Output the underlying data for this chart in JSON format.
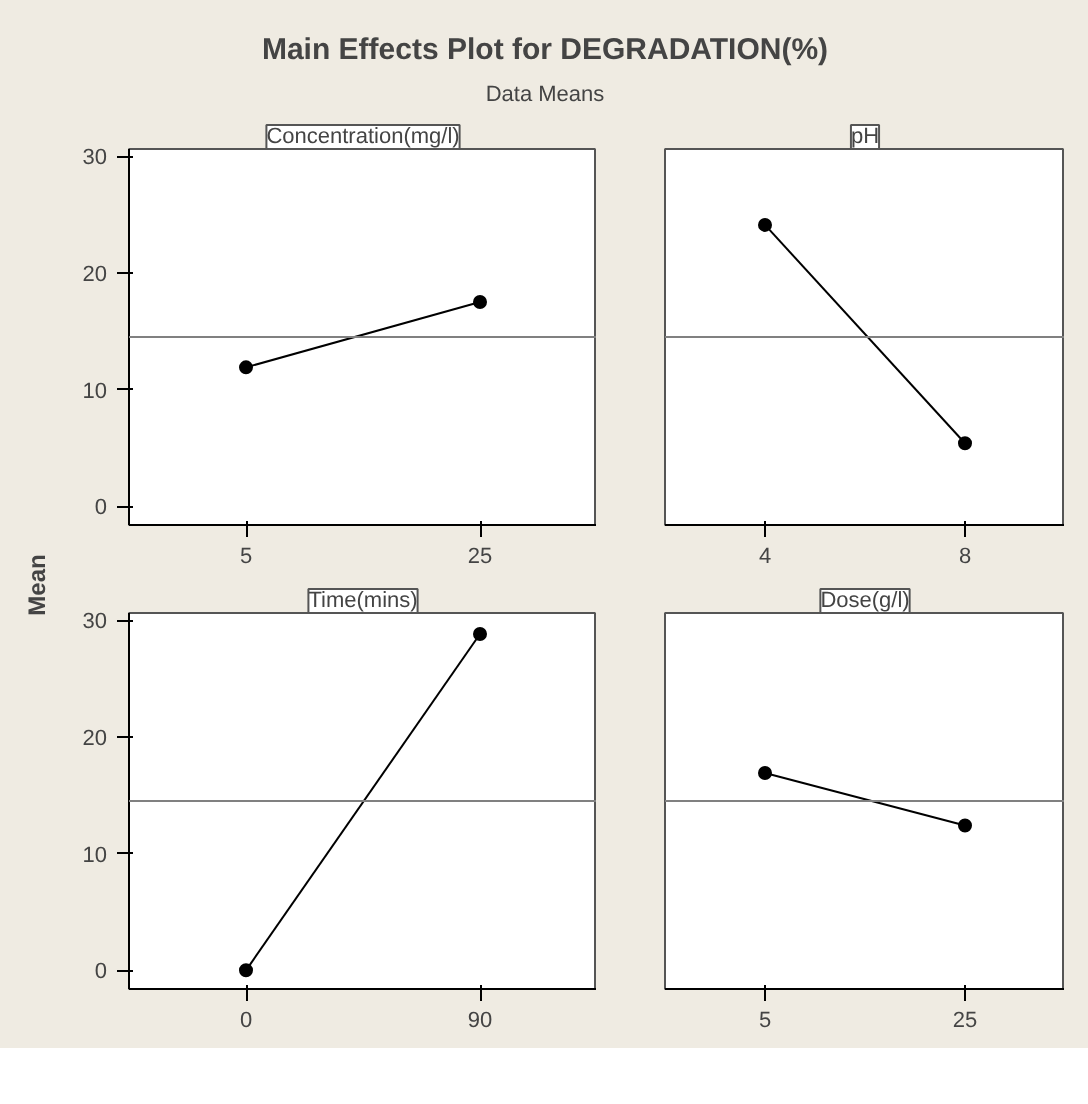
{
  "chart_data": [
    {
      "type": "line",
      "annotations": [
        "Main Effects Plot for DEGRADATION(%)",
        "Data Means"
      ],
      "ylabel": "Mean",
      "title": "Concentration(mg/l)",
      "categories": [
        "5",
        "25"
      ],
      "series": [
        {
          "color": "#000000",
          "values": [
            11.9,
            17.5
          ]
        }
      ],
      "ylim": [
        -1.6,
        30.6
      ],
      "yticks": [
        0,
        10,
        20,
        30
      ],
      "marker": "circle",
      "ref_lines": [
        {
          "axis": "y",
          "value": 14.5,
          "color": "#808080"
        }
      ]
    },
    {
      "type": "line",
      "title": "pH",
      "categories": [
        "4",
        "8"
      ],
      "series": [
        {
          "color": "#000000",
          "values": [
            24.1,
            5.4
          ]
        }
      ],
      "ylim": [
        -1.6,
        30.6
      ],
      "yticks": [
        0,
        10,
        20,
        30
      ],
      "tick_labels": "x",
      "marker": "circle",
      "ref_lines": [
        {
          "axis": "y",
          "value": 14.5,
          "color": "#808080"
        }
      ]
    },
    {
      "type": "line",
      "title": "Time(mins)",
      "categories": [
        "0",
        "90"
      ],
      "series": [
        {
          "color": "#000000",
          "values": [
            0,
            28.8
          ]
        }
      ],
      "ylim": [
        -1.6,
        30.6
      ],
      "yticks": [
        0,
        10,
        20,
        30
      ],
      "marker": "circle",
      "ref_lines": [
        {
          "axis": "y",
          "value": 14.5,
          "color": "#808080"
        }
      ]
    },
    {
      "type": "line",
      "title": "Dose(g/l)",
      "categories": [
        "5",
        "25"
      ],
      "series": [
        {
          "color": "#000000",
          "values": [
            16.9,
            12.4
          ]
        }
      ],
      "ylim": [
        -1.6,
        30.6
      ],
      "yticks": [
        0,
        10,
        20,
        30
      ],
      "tick_labels": "x",
      "marker": "circle",
      "ref_lines": [
        {
          "axis": "y",
          "value": 14.5,
          "color": "#808080"
        }
      ]
    }
  ]
}
